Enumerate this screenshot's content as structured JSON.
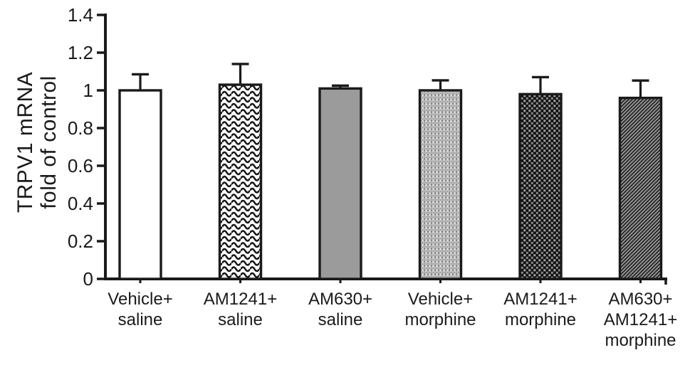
{
  "figure": {
    "kind": "scientific bar chart panel",
    "background_color": "#ffffff",
    "ink_color": "#1a1a1a"
  },
  "chart_data": {
    "type": "bar",
    "title": "",
    "ylabel": "TRPV1 mRNA fold of control",
    "ylabel_lines": [
      "TRPV1 mRNA",
      "fold of control"
    ],
    "xlabel": "",
    "ylim": [
      0,
      1.4
    ],
    "yticks": [
      0,
      0.2,
      0.4,
      0.6,
      0.8,
      1,
      1.2,
      1.4
    ],
    "ytick_labels": [
      "0",
      "0.2",
      "0.4",
      "0.6",
      "0.8",
      "1",
      "1.2",
      "1.4"
    ],
    "grid": false,
    "legend_position": "none",
    "error_bar_type": "upper-only",
    "categories": [
      [
        "Vehicle+",
        "saline"
      ],
      [
        "AM1241+",
        "saline"
      ],
      [
        "AM630+",
        "saline"
      ],
      [
        "Vehicle+",
        "morphine"
      ],
      [
        "AM1241+",
        "morphine"
      ],
      [
        "AM630+",
        "AM1241+",
        "morphine"
      ]
    ],
    "values": [
      1.0,
      1.03,
      1.01,
      1.0,
      0.98,
      0.96
    ],
    "errors": [
      0.085,
      0.11,
      0.015,
      0.053,
      0.09,
      0.092
    ],
    "bar_styles": [
      "open-white",
      "wavy-lines",
      "solid-gray",
      "light-stipple",
      "dark-checker",
      "dark-diagonal-stripes"
    ],
    "bar_colors": {
      "open_fill": "#ffffff",
      "solid_gray_fill": "#9b9b9b",
      "pattern_ink": "#141414"
    }
  }
}
